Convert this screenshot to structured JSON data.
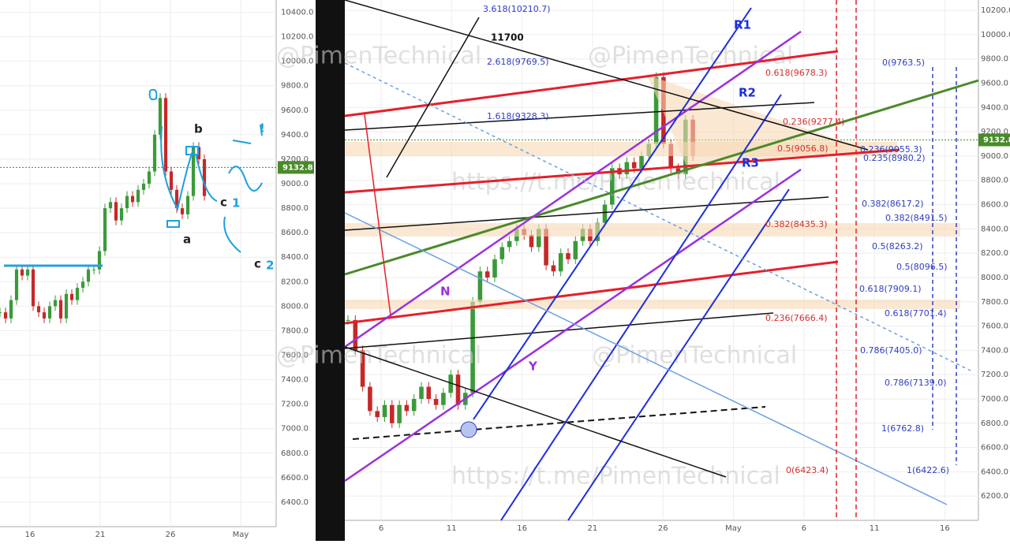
{
  "left_panel": {
    "yticks": [
      {
        "value": 6400,
        "label": "6400.0"
      },
      {
        "value": 6600,
        "label": "6600.0"
      },
      {
        "value": 6800,
        "label": "6800.0"
      },
      {
        "value": 7000,
        "label": "7000.0"
      },
      {
        "value": 7200,
        "label": "7200.0"
      },
      {
        "value": 7400,
        "label": "7400.0"
      },
      {
        "value": 7600,
        "label": "7600.0"
      },
      {
        "value": 7800,
        "label": "7800.0"
      },
      {
        "value": 8000,
        "label": "8000.0"
      },
      {
        "value": 8200,
        "label": "8200.0"
      },
      {
        "value": 8400,
        "label": "8400.0"
      },
      {
        "value": 8600,
        "label": "8600.0"
      },
      {
        "value": 8800,
        "label": "8800.0"
      },
      {
        "value": 9000,
        "label": "9000.0"
      },
      {
        "value": 9200,
        "label": "9200.0"
      },
      {
        "value": 9400,
        "label": "9400.0"
      },
      {
        "value": 9600,
        "label": "9600.0"
      },
      {
        "value": 9800,
        "label": "9800.0"
      },
      {
        "value": 10000,
        "label": "10000.0"
      },
      {
        "value": 10200,
        "label": "10200.0"
      },
      {
        "value": 10400,
        "label": "10400.0"
      }
    ],
    "ylim": [
      6200,
      10500
    ],
    "xticks": [
      "16",
      "21",
      "26",
      "May"
    ],
    "closes": [
      7950,
      7900,
      8050,
      8300,
      8250,
      8300,
      8000,
      7950,
      7900,
      8000,
      8050,
      7900,
      8100,
      8050,
      8150,
      8200,
      8300,
      8300,
      8450,
      8800,
      8850,
      8700,
      8800,
      8900,
      8850,
      8950,
      9000,
      9100,
      9400,
      9700,
      9100,
      8950,
      8800,
      8750,
      8900,
      9300,
      9200,
      8900
    ],
    "last_price": {
      "value": 9132.8,
      "label": "9132.8"
    },
    "annotations": [
      "b",
      "a",
      "c",
      "1",
      "c",
      "2",
      "!"
    ]
  },
  "right_panel": {
    "yticks": [
      {
        "value": 6200,
        "label": "6200.0"
      },
      {
        "value": 6400,
        "label": "6400.0"
      },
      {
        "value": 6600,
        "label": "6600.0"
      },
      {
        "value": 6800,
        "label": "6800.0"
      },
      {
        "value": 7000,
        "label": "7000.0"
      },
      {
        "value": 7200,
        "label": "7200.0"
      },
      {
        "value": 7400,
        "label": "7400.0"
      },
      {
        "value": 7600,
        "label": "7600.0"
      },
      {
        "value": 7800,
        "label": "7800.0"
      },
      {
        "value": 8000,
        "label": "8000.0"
      },
      {
        "value": 8200,
        "label": "8200.0"
      },
      {
        "value": 8400,
        "label": "8400.0"
      },
      {
        "value": 8600,
        "label": "8600.0"
      },
      {
        "value": 8800,
        "label": "8800.0"
      },
      {
        "value": 9000,
        "label": "9000.0"
      },
      {
        "value": 9200,
        "label": "9200.0"
      },
      {
        "value": 9400,
        "label": "9400.0"
      },
      {
        "value": 9600,
        "label": "9600.0"
      },
      {
        "value": 9800,
        "label": "9800.0"
      },
      {
        "value": 10000,
        "label": "10000.0"
      },
      {
        "value": 10200,
        "label": "10200.0"
      }
    ],
    "ylim": [
      6000,
      10285
    ],
    "xticks": [
      "6",
      "11",
      "16",
      "21",
      "26",
      "May",
      "6",
      "11",
      "16"
    ],
    "closes": [
      7650,
      7400,
      7100,
      6900,
      6850,
      6950,
      6800,
      6950,
      6900,
      7000,
      7100,
      7000,
      6950,
      7050,
      7200,
      6950,
      7050,
      7800,
      8050,
      8000,
      8150,
      8250,
      8300,
      8400,
      8350,
      8250,
      8400,
      8100,
      8050,
      8200,
      8150,
      8300,
      8400,
      8300,
      8450,
      8600,
      8900,
      8850,
      8950,
      8900,
      9000,
      9100,
      9650,
      9100,
      8900,
      8850,
      9300,
      9000
    ],
    "last_price": {
      "value": 9132.8,
      "label": "9132.8"
    },
    "ext_labels": [
      "3.618(10210.7)",
      "2.618(9769.5)",
      "1.618(9328.3)"
    ],
    "target": "11700",
    "channels": [
      "R1",
      "R2",
      "R3",
      "N",
      "Y"
    ],
    "red_fibs": [
      "0.618(9678.3)",
      "0.236(9277.4)",
      "0.5(9056.8)",
      "0.382(8435.3)",
      "0.236(7666.4)",
      "0(6423.4)"
    ],
    "blue_fibs": [
      "0(9763.5)",
      "0.236(9055.3)",
      "0.235(8980.2)",
      "0.382(8617.2)",
      "0.382(8491.5)",
      "0.5(8263.2)",
      "0.5(8096.5)",
      "0.618(7909.1)",
      "0.618(7701.4)",
      "0.786(7405.0)",
      "0.786(7139.0)",
      "1(6762.8)",
      "1(6422.6)"
    ],
    "watermarks": [
      "@PimenTechnical",
      "https://t.me/PimenTechnical"
    ]
  }
}
